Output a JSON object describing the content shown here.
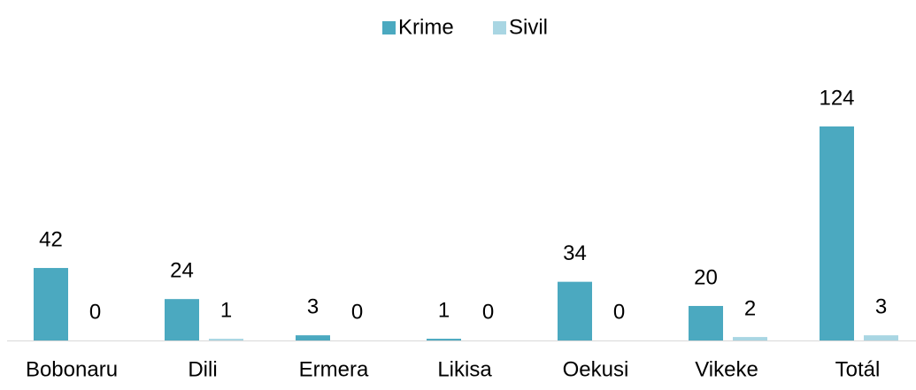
{
  "chart_data": {
    "type": "bar",
    "categories": [
      "Bobonaru",
      "Dili",
      "Ermera",
      "Likisa",
      "Oekusi",
      "Vikeke",
      "Totál"
    ],
    "series": [
      {
        "name": "Krime",
        "color": "#4ba9c0",
        "values": [
          42,
          24,
          3,
          1,
          34,
          20,
          124
        ]
      },
      {
        "name": "Sivil",
        "color": "#a9d6e3",
        "values": [
          0,
          1,
          0,
          0,
          0,
          2,
          3
        ]
      }
    ],
    "legend": "top"
  }
}
